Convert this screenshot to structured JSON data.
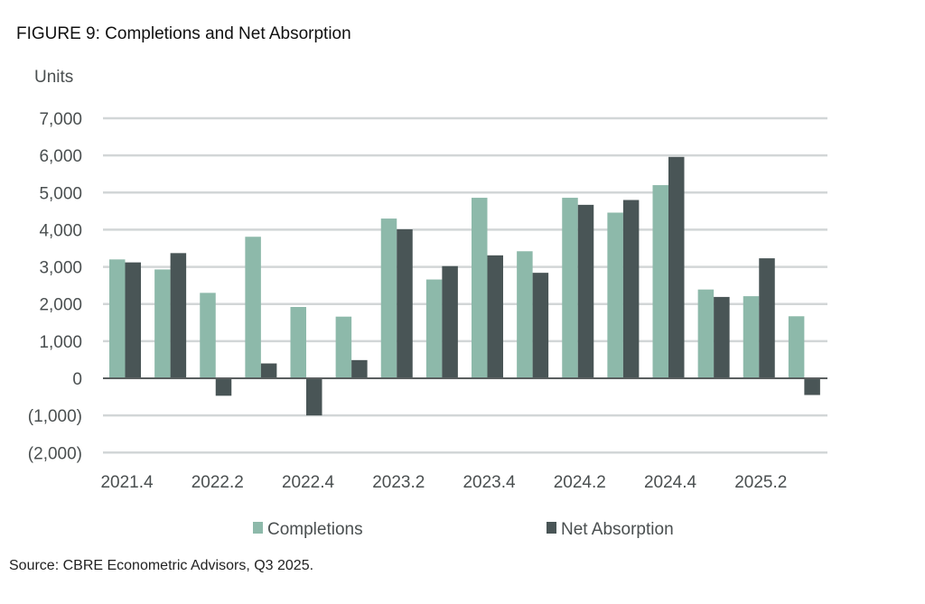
{
  "chart_data": {
    "type": "bar",
    "title": "FIGURE 9: Completions and Net Absorption",
    "ylabel": "Units",
    "xlabel": "",
    "ylim": [
      -2000,
      7000
    ],
    "yticks": [
      7000,
      6000,
      5000,
      4000,
      3000,
      2000,
      1000,
      0,
      -1000,
      -2000
    ],
    "ytick_labels": [
      "7,000",
      "6,000",
      "5,000",
      "4,000",
      "3,000",
      "2,000",
      "1,000",
      "0",
      "(1,000)",
      "(2,000)"
    ],
    "categories": [
      "2021.4",
      "2022.1",
      "2022.2",
      "2022.3",
      "2022.4",
      "2023.1",
      "2023.2",
      "2023.3",
      "2023.4",
      "2024.1",
      "2024.2",
      "2024.3",
      "2024.4",
      "2025.1",
      "2025.2",
      "2025.3"
    ],
    "xtick_labels": [
      "2021.4",
      "2022.2",
      "2022.4",
      "2023.2",
      "2023.4",
      "2024.2",
      "2024.4",
      "2025.2"
    ],
    "xtick_every": 2,
    "grid": true,
    "legend_position": "bottom",
    "series": [
      {
        "name": "Completions",
        "color": "#8db9aa",
        "values": [
          3200,
          2930,
          2300,
          3810,
          1920,
          1660,
          4300,
          2660,
          4860,
          3420,
          4860,
          4460,
          5200,
          2390,
          2210,
          1670
        ]
      },
      {
        "name": "Net Absorption",
        "color": "#495556",
        "values": [
          3120,
          3370,
          -470,
          400,
          -1000,
          490,
          4010,
          3020,
          3310,
          2840,
          4670,
          4800,
          5960,
          2190,
          3230,
          -450
        ]
      }
    ],
    "source": "Source: CBRE Econometric Advisors, Q3 2025."
  }
}
